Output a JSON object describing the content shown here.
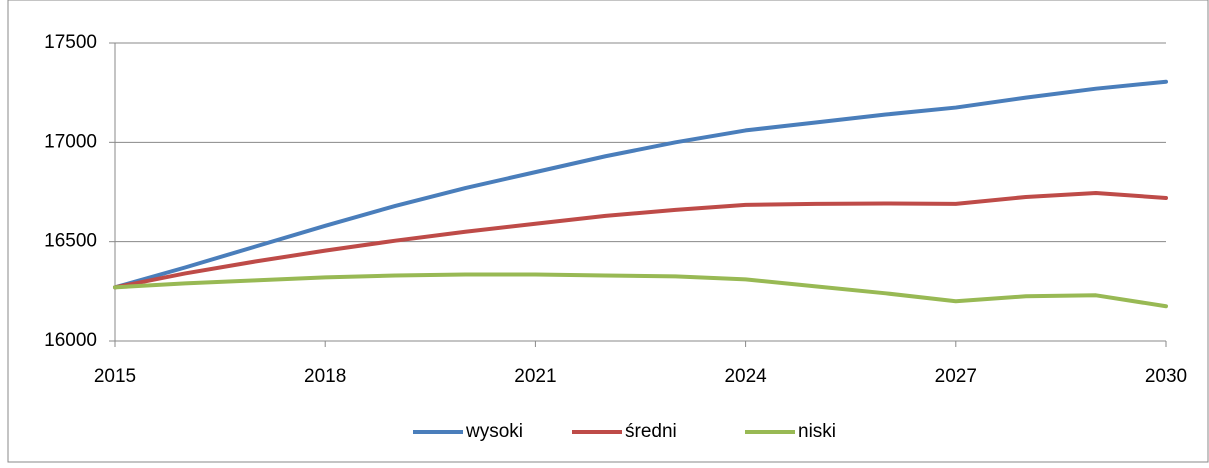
{
  "chart_data": {
    "type": "line",
    "x": [
      2015,
      2016,
      2017,
      2018,
      2019,
      2020,
      2021,
      2022,
      2023,
      2024,
      2025,
      2026,
      2027,
      2028,
      2029,
      2030
    ],
    "series": [
      {
        "name": "wysoki",
        "color": "#4a7ebb",
        "values": [
          16270,
          16370,
          16475,
          16580,
          16680,
          16770,
          16850,
          16930,
          17000,
          17060,
          17100,
          17140,
          17175,
          17225,
          17270,
          17305
        ]
      },
      {
        "name": "średni",
        "color": "#be4b48",
        "values": [
          16270,
          16340,
          16400,
          16455,
          16505,
          16550,
          16590,
          16630,
          16660,
          16685,
          16690,
          16692,
          16690,
          16725,
          16745,
          16720
        ]
      },
      {
        "name": "niski",
        "color": "#98b954",
        "values": [
          16270,
          16290,
          16305,
          16320,
          16330,
          16335,
          16335,
          16330,
          16325,
          16310,
          16275,
          16240,
          16200,
          16225,
          16230,
          16175
        ]
      }
    ],
    "xlim": [
      2015,
      2030
    ],
    "xticks": [
      2015,
      2018,
      2021,
      2024,
      2027,
      2030
    ],
    "ylim": [
      16000,
      17500
    ],
    "yticks": [
      16000,
      16500,
      17000,
      17500
    ],
    "grid": true,
    "legend": "bottom"
  }
}
